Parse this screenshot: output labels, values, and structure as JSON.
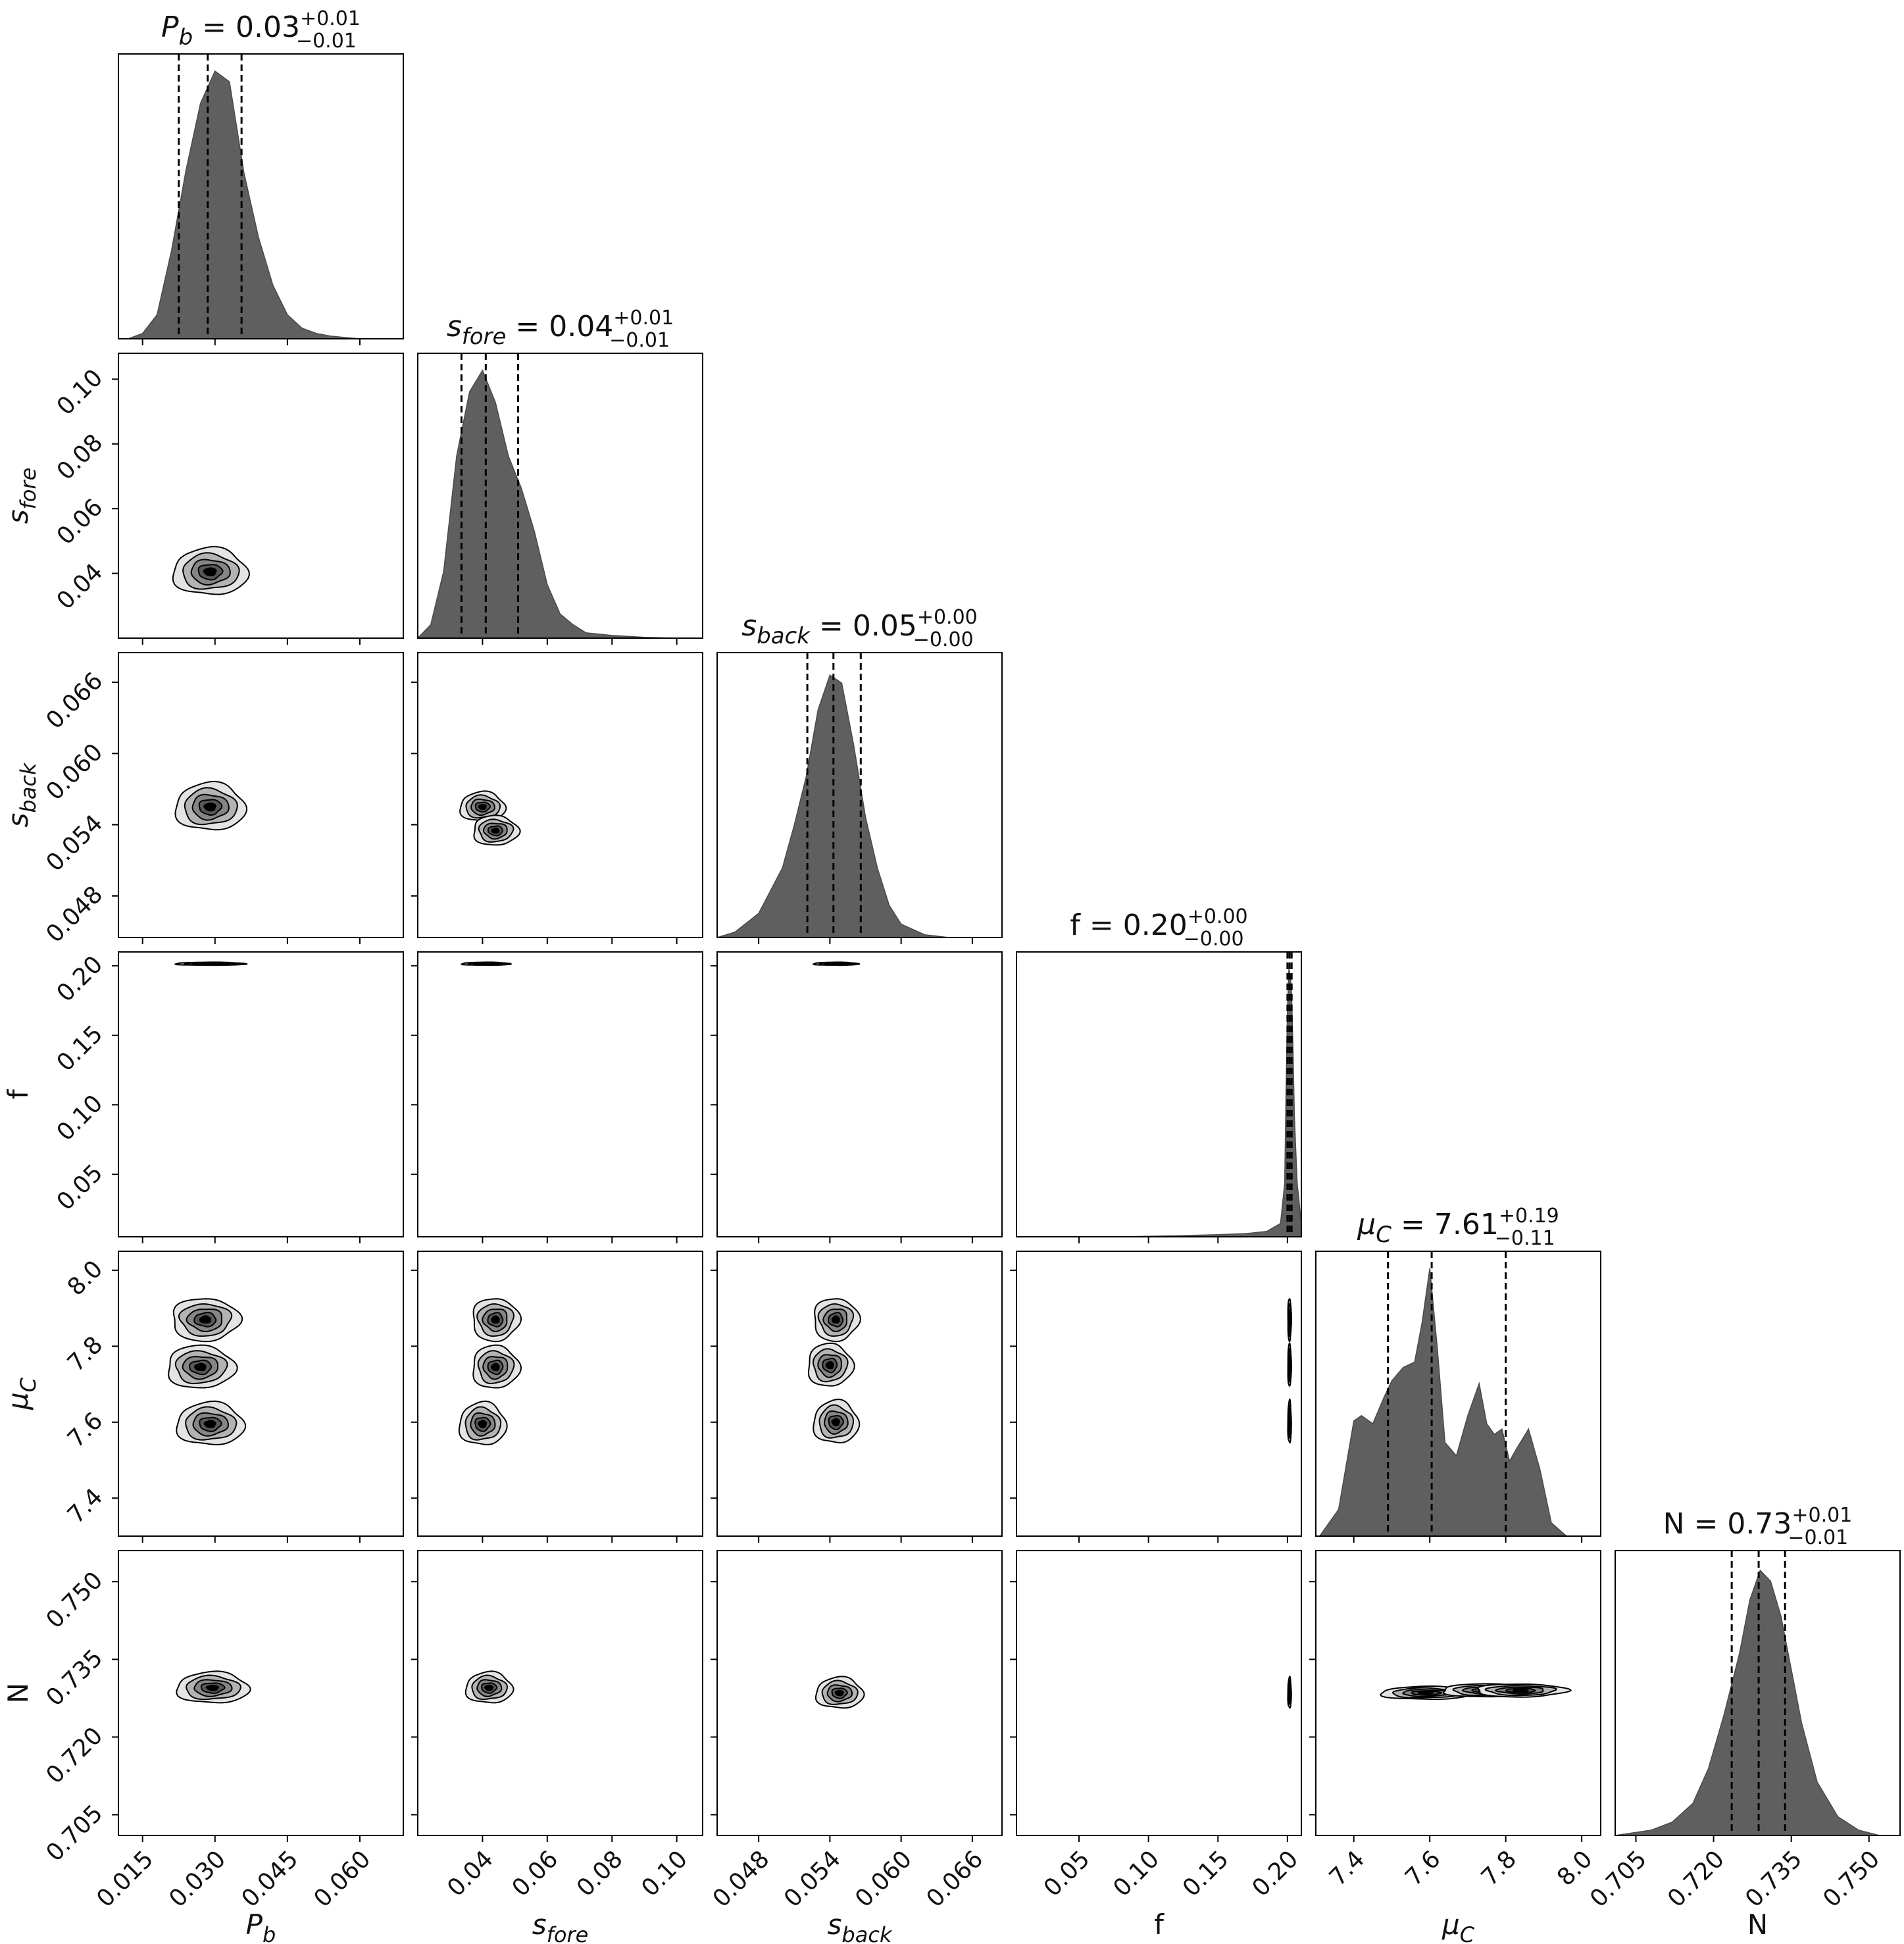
{
  "chart_data": {
    "type": "corner",
    "style": {
      "histogram_fill": "#5f5f5f",
      "contour_fills": [
        "#e4e4e4",
        "#b3b3b3",
        "#858585",
        "#575757",
        "#000000"
      ],
      "line_color": "#000000",
      "quantile_line": "dashed"
    },
    "parameters": [
      {
        "key": "pb",
        "label_main": "P",
        "label_sub": "b",
        "label_italic": true,
        "title_prefix": "= ",
        "value": "0.03",
        "err_plus": "+0.01",
        "err_minus": "−0.01",
        "range": [
          0.01,
          0.069
        ],
        "ticks": [
          "0.015",
          "0.030",
          "0.045",
          "0.060"
        ],
        "tick_values": [
          0.015,
          0.03,
          0.045,
          0.06
        ],
        "quantiles": [
          0.0225,
          0.0285,
          0.0355
        ],
        "hist_x": [
          0.012,
          0.015,
          0.018,
          0.021,
          0.024,
          0.027,
          0.03,
          0.033,
          0.036,
          0.039,
          0.042,
          0.045,
          0.048,
          0.051,
          0.054,
          0.057,
          0.06
        ],
        "hist_y": [
          0.0,
          0.02,
          0.09,
          0.33,
          0.63,
          0.88,
          1.0,
          0.96,
          0.62,
          0.38,
          0.2,
          0.09,
          0.04,
          0.02,
          0.01,
          0.005,
          0.0
        ]
      },
      {
        "key": "sfore",
        "label_main": "s",
        "label_sub": "fore",
        "label_italic": true,
        "title_prefix": "= ",
        "value": "0.04",
        "err_plus": "+0.01",
        "err_minus": "−0.01",
        "range": [
          0.02,
          0.108
        ],
        "ticks": [
          "0.04",
          "0.06",
          "0.08",
          "0.10"
        ],
        "tick_values": [
          0.04,
          0.06,
          0.08,
          0.1
        ],
        "quantiles": [
          0.0335,
          0.041,
          0.051
        ],
        "hist_x": [
          0.02,
          0.024,
          0.028,
          0.032,
          0.036,
          0.04,
          0.044,
          0.048,
          0.052,
          0.056,
          0.06,
          0.064,
          0.068,
          0.072,
          0.08,
          0.09,
          0.1
        ],
        "hist_y": [
          0.0,
          0.05,
          0.25,
          0.68,
          0.92,
          1.0,
          0.88,
          0.68,
          0.56,
          0.4,
          0.2,
          0.09,
          0.05,
          0.02,
          0.01,
          0.003,
          0.0
        ]
      },
      {
        "key": "sback",
        "label_main": "s",
        "label_sub": "back",
        "label_italic": true,
        "title_prefix": "= ",
        "value": "0.05",
        "err_plus": "+0.00",
        "err_minus": "−0.00",
        "range": [
          0.0445,
          0.0685
        ],
        "ticks": [
          "0.048",
          "0.054",
          "0.060",
          "0.066"
        ],
        "tick_values": [
          0.048,
          0.054,
          0.06,
          0.066
        ],
        "quantiles": [
          0.0521,
          0.0543,
          0.0566
        ],
        "hist_x": [
          0.0445,
          0.046,
          0.048,
          0.05,
          0.051,
          0.052,
          0.053,
          0.054,
          0.055,
          0.056,
          0.057,
          0.058,
          0.059,
          0.06,
          0.062,
          0.064
        ],
        "hist_y": [
          0.0,
          0.02,
          0.09,
          0.26,
          0.42,
          0.6,
          0.85,
          0.98,
          0.95,
          0.72,
          0.45,
          0.26,
          0.12,
          0.05,
          0.01,
          0.0
        ]
      },
      {
        "key": "f",
        "label_main": "f",
        "label_sub": "",
        "label_italic": false,
        "title_prefix": "= ",
        "value": "0.20",
        "err_plus": "+0.00",
        "err_minus": "−0.00",
        "range": [
          0.005,
          0.21
        ],
        "ticks": [
          "0.05",
          "0.10",
          "0.15",
          "0.20"
        ],
        "tick_values": [
          0.05,
          0.1,
          0.15,
          0.2
        ],
        "quantiles": [
          0.2,
          0.2015,
          0.203
        ],
        "hist_x": [
          0.08,
          0.12,
          0.15,
          0.17,
          0.185,
          0.195,
          0.198,
          0.199,
          0.2,
          0.201,
          0.202,
          0.203,
          0.204,
          0.205,
          0.207,
          0.21
        ],
        "hist_y": [
          0.0,
          0.004,
          0.008,
          0.012,
          0.02,
          0.05,
          0.2,
          0.55,
          0.85,
          1.0,
          0.98,
          0.9,
          0.7,
          0.45,
          0.2,
          0.05
        ]
      },
      {
        "key": "muc",
        "label_main": "μ",
        "label_sub": "C",
        "label_italic": true,
        "title_prefix": "= ",
        "value": "7.61",
        "err_plus": "+0.19",
        "err_minus": "−0.11",
        "range": [
          7.3,
          8.05
        ],
        "ticks": [
          "7.4",
          "7.6",
          "7.8",
          "8.0"
        ],
        "tick_values": [
          7.4,
          7.6,
          7.8,
          8.0
        ],
        "quantiles": [
          7.49,
          7.605,
          7.8
        ],
        "hist_x": [
          7.31,
          7.36,
          7.4,
          7.42,
          7.45,
          7.48,
          7.5,
          7.53,
          7.56,
          7.58,
          7.6,
          7.62,
          7.64,
          7.67,
          7.7,
          7.73,
          7.75,
          7.77,
          7.79,
          7.81,
          7.83,
          7.86,
          7.89,
          7.92,
          7.96
        ],
        "hist_y": [
          0.0,
          0.1,
          0.43,
          0.45,
          0.42,
          0.52,
          0.58,
          0.63,
          0.65,
          0.8,
          1.0,
          0.7,
          0.35,
          0.3,
          0.45,
          0.57,
          0.42,
          0.38,
          0.4,
          0.28,
          0.33,
          0.4,
          0.25,
          0.05,
          0.0
        ]
      },
      {
        "key": "n",
        "label_main": "N",
        "label_sub": "",
        "label_italic": false,
        "title_prefix": "= ",
        "value": "0.73",
        "err_plus": "+0.01",
        "err_minus": "−0.01",
        "range": [
          0.701,
          0.756
        ],
        "ticks": [
          "0.705",
          "0.720",
          "0.735",
          "0.750"
        ],
        "tick_values": [
          0.705,
          0.72,
          0.735,
          0.75
        ],
        "quantiles": [
          0.7235,
          0.7287,
          0.7338
        ],
        "hist_x": [
          0.701,
          0.708,
          0.712,
          0.716,
          0.719,
          0.722,
          0.725,
          0.727,
          0.729,
          0.731,
          0.733,
          0.735,
          0.737,
          0.74,
          0.744,
          0.748,
          0.752
        ],
        "hist_y": [
          0.0,
          0.02,
          0.05,
          0.12,
          0.25,
          0.45,
          0.68,
          0.88,
          0.99,
          0.95,
          0.82,
          0.62,
          0.42,
          0.2,
          0.07,
          0.02,
          0.0
        ]
      }
    ],
    "pairs": [
      {
        "x": "pb",
        "y": "sfore",
        "center": [
          0.029,
          0.0405
        ],
        "sx": 0.0155,
        "sy": 0.0145,
        "peaks": [
          [
            0.029,
            0.0405
          ]
        ]
      },
      {
        "x": "pb",
        "y": "sback",
        "center": [
          0.03,
          0.0545
        ],
        "sx": 0.0145,
        "sy": 0.004,
        "peaks": [
          [
            0.029,
            0.0555
          ]
        ]
      },
      {
        "x": "sfore",
        "y": "sback",
        "center": [
          0.042,
          0.0545
        ],
        "sx": 0.014,
        "sy": 0.004,
        "peaks": [
          [
            0.04,
            0.0555
          ],
          [
            0.044,
            0.0535
          ]
        ]
      },
      {
        "x": "pb",
        "y": "f",
        "center": [
          0.0285,
          0.2015
        ],
        "sx": 0.0145,
        "sy": 0.0022,
        "peaks": [
          [
            0.029,
            0.2015
          ]
        ]
      },
      {
        "x": "sfore",
        "y": "f",
        "center": [
          0.041,
          0.2015
        ],
        "sx": 0.015,
        "sy": 0.0022,
        "peaks": [
          [
            0.041,
            0.2015
          ]
        ]
      },
      {
        "x": "sback",
        "y": "f",
        "center": [
          0.0542,
          0.2015
        ],
        "sx": 0.0038,
        "sy": 0.0022,
        "peaks": [
          [
            0.0545,
            0.2015
          ]
        ]
      },
      {
        "x": "pb",
        "y": "muc",
        "center": [
          0.029,
          7.62
        ],
        "sx": 0.014,
        "sy": 0.18,
        "peaks": [
          [
            0.029,
            7.595
          ],
          [
            0.027,
            7.745
          ],
          [
            0.028,
            7.87
          ]
        ]
      },
      {
        "x": "sfore",
        "y": "muc",
        "center": [
          0.042,
          7.62
        ],
        "sx": 0.0145,
        "sy": 0.18,
        "peaks": [
          [
            0.04,
            7.595
          ],
          [
            0.044,
            7.745
          ],
          [
            0.044,
            7.87
          ]
        ]
      },
      {
        "x": "sback",
        "y": "muc",
        "center": [
          0.0542,
          7.62
        ],
        "sx": 0.0038,
        "sy": 0.18,
        "peaks": [
          [
            0.0545,
            7.6
          ],
          [
            0.054,
            7.75
          ],
          [
            0.0545,
            7.87
          ]
        ]
      },
      {
        "x": "f",
        "y": "muc",
        "center": [
          0.2015,
          7.65
        ],
        "sx": 0.0025,
        "sy": 0.18,
        "peaks": [
          [
            0.2015,
            7.6
          ],
          [
            0.2015,
            7.75
          ],
          [
            0.2015,
            7.87
          ]
        ]
      },
      {
        "x": "pb",
        "y": "n",
        "center": [
          0.029,
          0.729
        ],
        "sx": 0.015,
        "sy": 0.006,
        "peaks": [
          [
            0.0295,
            0.7295
          ]
        ]
      },
      {
        "x": "sfore",
        "y": "n",
        "center": [
          0.042,
          0.729
        ],
        "sx": 0.0145,
        "sy": 0.006,
        "peaks": [
          [
            0.042,
            0.7295
          ]
        ]
      },
      {
        "x": "sback",
        "y": "n",
        "center": [
          0.0545,
          0.7285
        ],
        "sx": 0.004,
        "sy": 0.006,
        "peaks": [
          [
            0.0548,
            0.7285
          ]
        ]
      },
      {
        "x": "f",
        "y": "n",
        "center": [
          0.2015,
          0.7285
        ],
        "sx": 0.0025,
        "sy": 0.006,
        "peaks": [
          [
            0.2015,
            0.7285
          ]
        ]
      },
      {
        "x": "muc",
        "y": "n",
        "center": [
          7.65,
          0.7285
        ],
        "sx": 0.24,
        "sy": 0.004,
        "peaks": [
          [
            7.59,
            0.7285
          ],
          [
            7.75,
            0.729
          ],
          [
            7.84,
            0.729
          ]
        ]
      }
    ]
  }
}
